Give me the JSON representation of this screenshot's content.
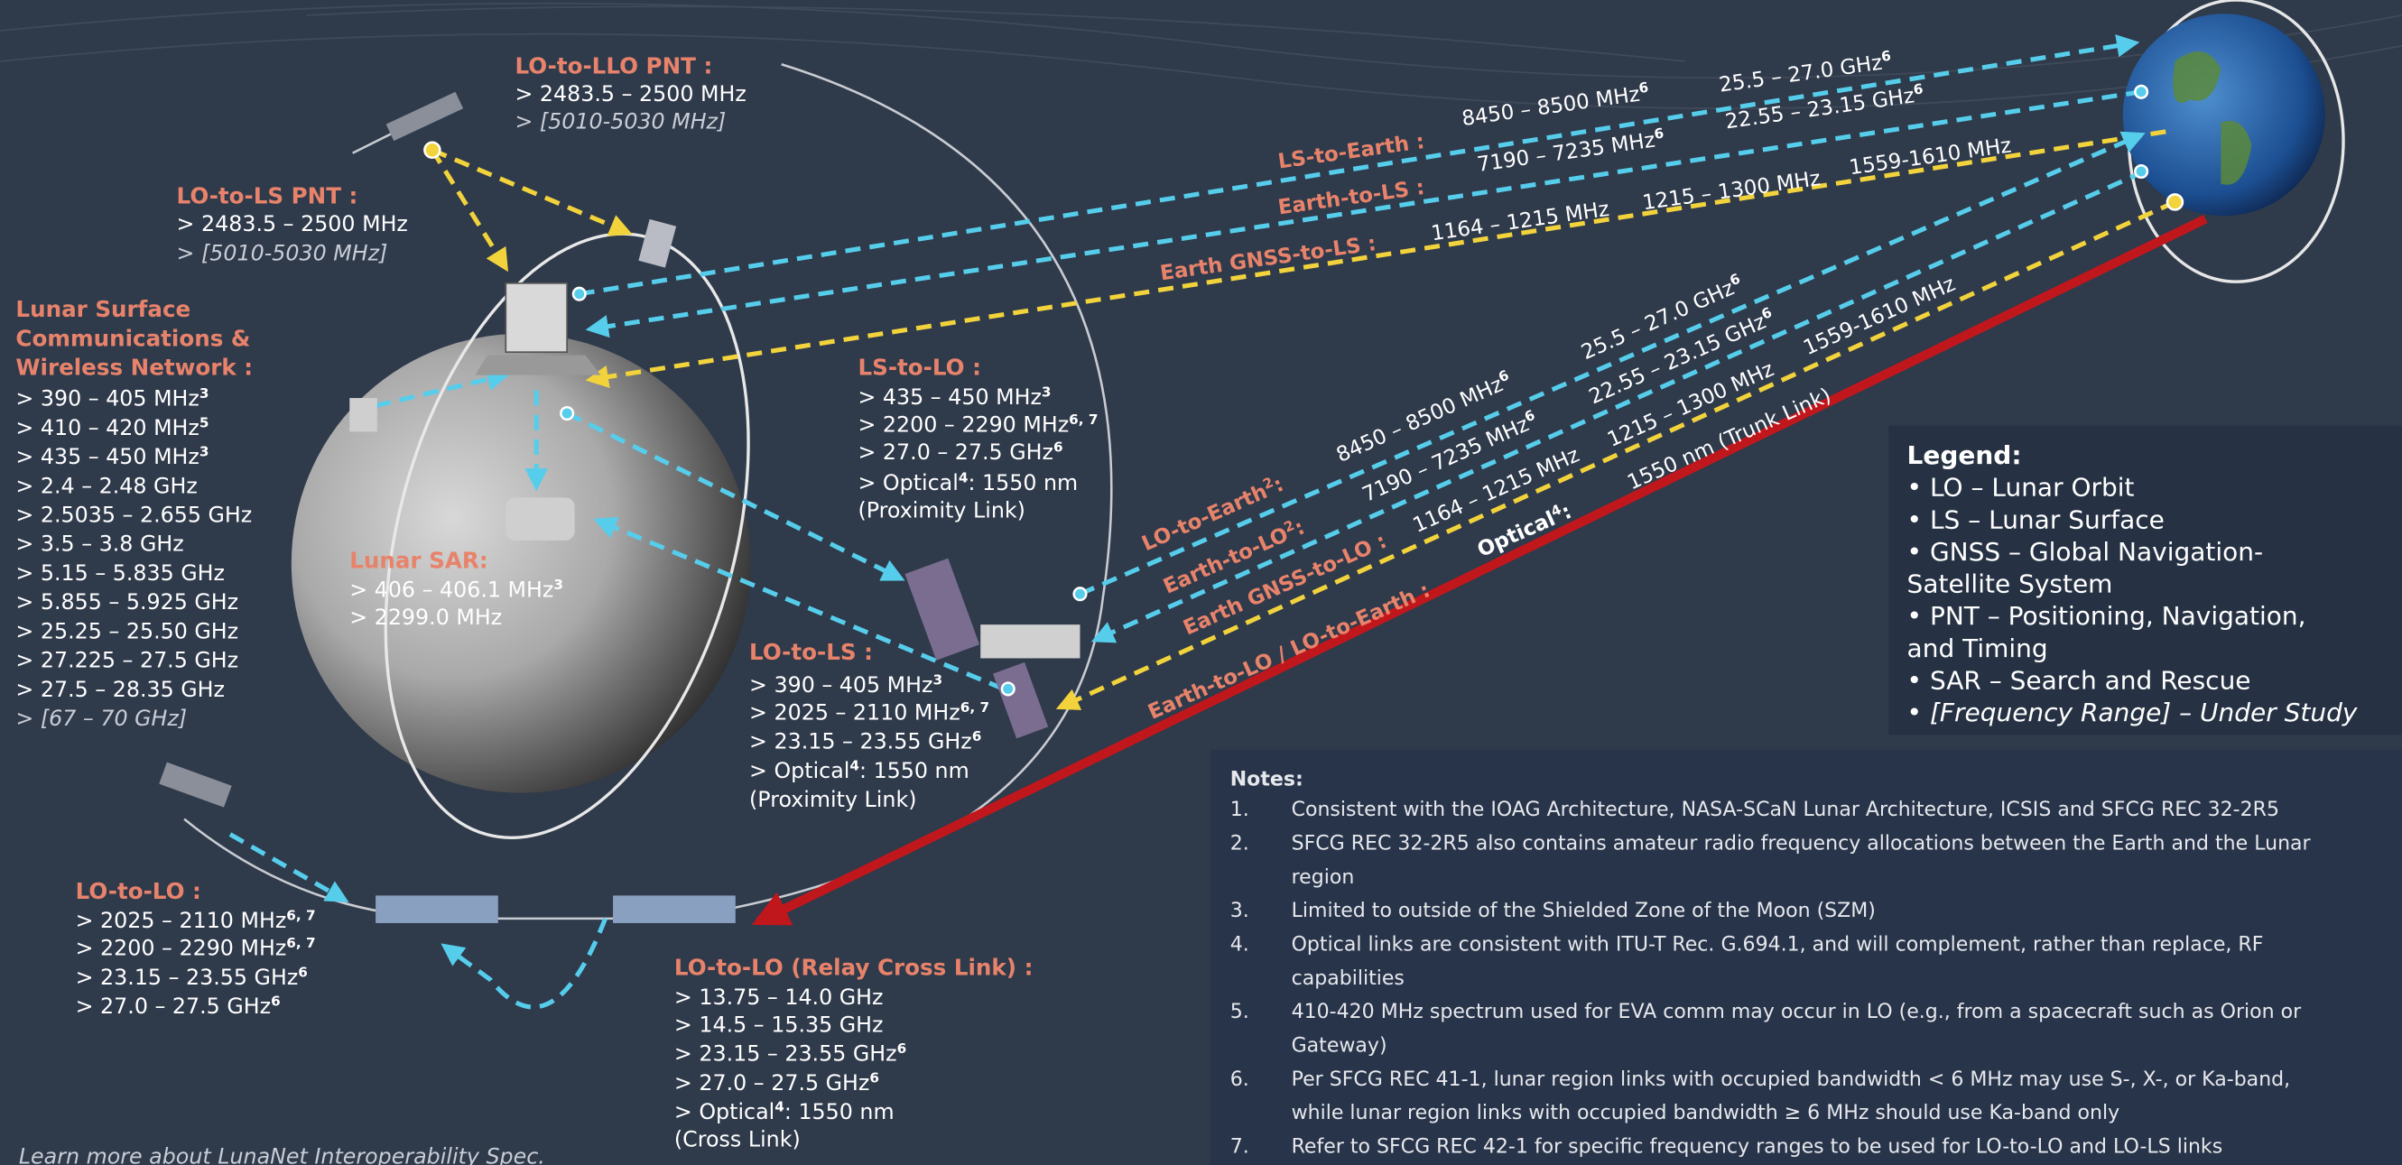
{
  "groups": [
    {
      "title": [
        "LO-to-LLO PNT :"
      ],
      "items": [
        "> 2483.5 – 2500 MHz",
        "> [5010-5030 MHz]"
      ]
    },
    {
      "title": [
        "LO-to-LS PNT :"
      ],
      "items": [
        "> 2483.5 – 2500 MHz",
        "> [5010-5030 MHz]"
      ]
    },
    {
      "title": [
        "Lunar Surface",
        "Communications &",
        "Wireless Network :"
      ],
      "items": [
        {
          "text": ">  390 – 405 MHz",
          "sup": "3"
        },
        {
          "text": ">  410 – 420 MHz",
          "sup": "5"
        },
        {
          "text": ">  435 – 450 MHz",
          "sup": "3"
        },
        ">  2.4 – 2.48 GHz",
        ">  2.5035 – 2.655 GHz",
        ">  3.5 – 3.8 GHz",
        ">  5.15 – 5.835 GHz",
        ">  5.855 – 5.925 GHz",
        ">  25.25 – 25.50 GHz",
        ">  27.225 – 27.5 GHz",
        ">  27.5 – 28.35 GHz",
        ">  [67 – 70 GHz]"
      ]
    },
    {
      "title": [
        "Lunar SAR:"
      ],
      "items": [
        {
          "text": "> 406 – 406.1 MHz",
          "sup": "3"
        },
        "> 2299.0 MHz"
      ]
    },
    {
      "title": [
        "LS-to-LO :"
      ],
      "items": [
        {
          "text": "> 435 – 450 MHz",
          "sup": "3"
        },
        {
          "text": "> 2200 – 2290 MHz",
          "sup": "6, 7"
        },
        {
          "text": "> 27.0 – 27.5 GHz",
          "sup": "6"
        },
        {
          "text": "> Optical",
          "sup": "4",
          "after": ": 1550 nm"
        },
        "   (Proximity Link)"
      ]
    },
    {
      "title": [
        "LO-to-LS :"
      ],
      "items": [
        {
          "text": "> 390 – 405 MHz",
          "sup": "3"
        },
        {
          "text": "> 2025 – 2110 MHz",
          "sup": "6, 7"
        },
        {
          "text": "> 23.15 – 23.55 GHz",
          "sup": "6"
        },
        {
          "text": "> Optical",
          "sup": "4",
          "after": ": 1550 nm"
        },
        "   (Proximity Link)"
      ]
    },
    {
      "title": [
        "LO-to-LO :"
      ],
      "items": [
        {
          "text": "> 2025 – 2110 MHz",
          "sup": "6, 7"
        },
        {
          "text": "> 2200 – 2290 MHz",
          "sup": "6, 7"
        },
        {
          "text": "> 23.15 – 23.55 GHz",
          "sup": "6"
        },
        {
          "text": "> 27.0 – 27.5 GHz",
          "sup": "6"
        }
      ]
    },
    {
      "title": [
        "LO-to-LO (Relay Cross Link) :"
      ],
      "items": [
        "> 13.75 – 14.0 GHz",
        "> 14.5 – 15.35 GHz",
        {
          "text": "> 23.15 – 23.55 GHz",
          "sup": "6"
        },
        {
          "text": "> 27.0 – 27.5 GHz",
          "sup": "6"
        },
        {
          "text": "> Optical",
          "sup": "4",
          "after": ": 1550 nm"
        },
        "   (Cross Link)"
      ]
    }
  ],
  "links": [
    {
      "label": "LS-to-Earth :",
      "freqs": [
        {
          "text": "8450 – 8500 MHz",
          "sup": "6"
        },
        {
          "text": "25.5 – 27.0 GHz",
          "sup": "6"
        }
      ]
    },
    {
      "label": "Earth-to-LS :",
      "freqs": [
        {
          "text": "7190 – 7235 MHz",
          "sup": "6"
        },
        {
          "text": "22.55 – 23.15 GHz",
          "sup": "6"
        }
      ]
    },
    {
      "label": "Earth GNSS-to-LS :",
      "freqs": [
        "1164 – 1215 MHz",
        "1215 – 1300 MHz",
        "1559-1610 MHz"
      ]
    },
    {
      "label": {
        "text": "LO-to-Earth",
        "sup": "2",
        "after": ":"
      },
      "freqs": [
        {
          "text": "8450 – 8500 MHz",
          "sup": "6"
        },
        {
          "text": "25.5 – 27.0 GHz",
          "sup": "6"
        }
      ]
    },
    {
      "label": {
        "text": "Earth-to-LO",
        "sup": "2",
        "after": ":"
      },
      "freqs": [
        {
          "text": "7190 – 7235 MHz",
          "sup": "6"
        },
        {
          "text": "22.55 – 23.15 GHz",
          "sup": "6"
        }
      ]
    },
    {
      "label": "Earth GNSS-to-LO :",
      "freqs": [
        "1164 – 1215 MHz",
        "1215 – 1300 MHz",
        "1559-1610 MHz"
      ]
    },
    {
      "label": "Earth-to-LO / LO-to-Earth :",
      "freqs": [
        {
          "text": "Optical",
          "sup": "4",
          "after": ":"
        },
        "1550 nm  (Trunk Link)"
      ]
    }
  ],
  "legend": {
    "title": "Legend:",
    "items": [
      [
        "• LO – Lunar Orbit"
      ],
      [
        "• LS – Lunar Surface"
      ],
      [
        "• GNSS – Global Navigation-",
        "   Satellite System"
      ],
      [
        "• PNT – Positioning, Navigation,",
        "   and Timing"
      ],
      [
        "• SAR – Search and Rescue"
      ],
      [
        "• [Frequency Range] – Under Study"
      ]
    ]
  },
  "notes": {
    "title": "Notes:",
    "items": [
      {
        "number": "1.",
        "lines": [
          "Consistent with the IOAG Architecture, NASA-SCaN Lunar Architecture, ICSIS and SFCG REC 32-2R5"
        ]
      },
      {
        "number": "2.",
        "lines": [
          "SFCG REC 32-2R5 also contains amateur radio frequency allocations between the Earth and the Lunar",
          "region"
        ]
      },
      {
        "number": "3.",
        "lines": [
          "Limited to outside of the Shielded Zone of the Moon (SZM)"
        ]
      },
      {
        "number": "4.",
        "lines": [
          "Optical links are consistent with ITU-T Rec. G.694.1, and will complement, rather than replace, RF",
          "capabilities"
        ]
      },
      {
        "number": "5.",
        "lines": [
          "410-420 MHz spectrum used for EVA comm may occur in LO (e.g., from a spacecraft such as Orion or",
          "Gateway)"
        ]
      },
      {
        "number": "6.",
        "lines": [
          "Per SFCG REC 41-1, lunar region links with occupied bandwidth < 6 MHz may use S-, X-, or Ka-band,",
          "while lunar region links with occupied bandwidth ≥ 6 MHz should use Ka-band only"
        ]
      },
      {
        "number": "7.",
        "lines": [
          "Refer to SFCG REC 42-1 for specific frequency ranges to be used for LO-to-LO and LO-LS links"
        ]
      }
    ]
  },
  "footer": "Learn more about LunaNet Interoperability Spec."
}
